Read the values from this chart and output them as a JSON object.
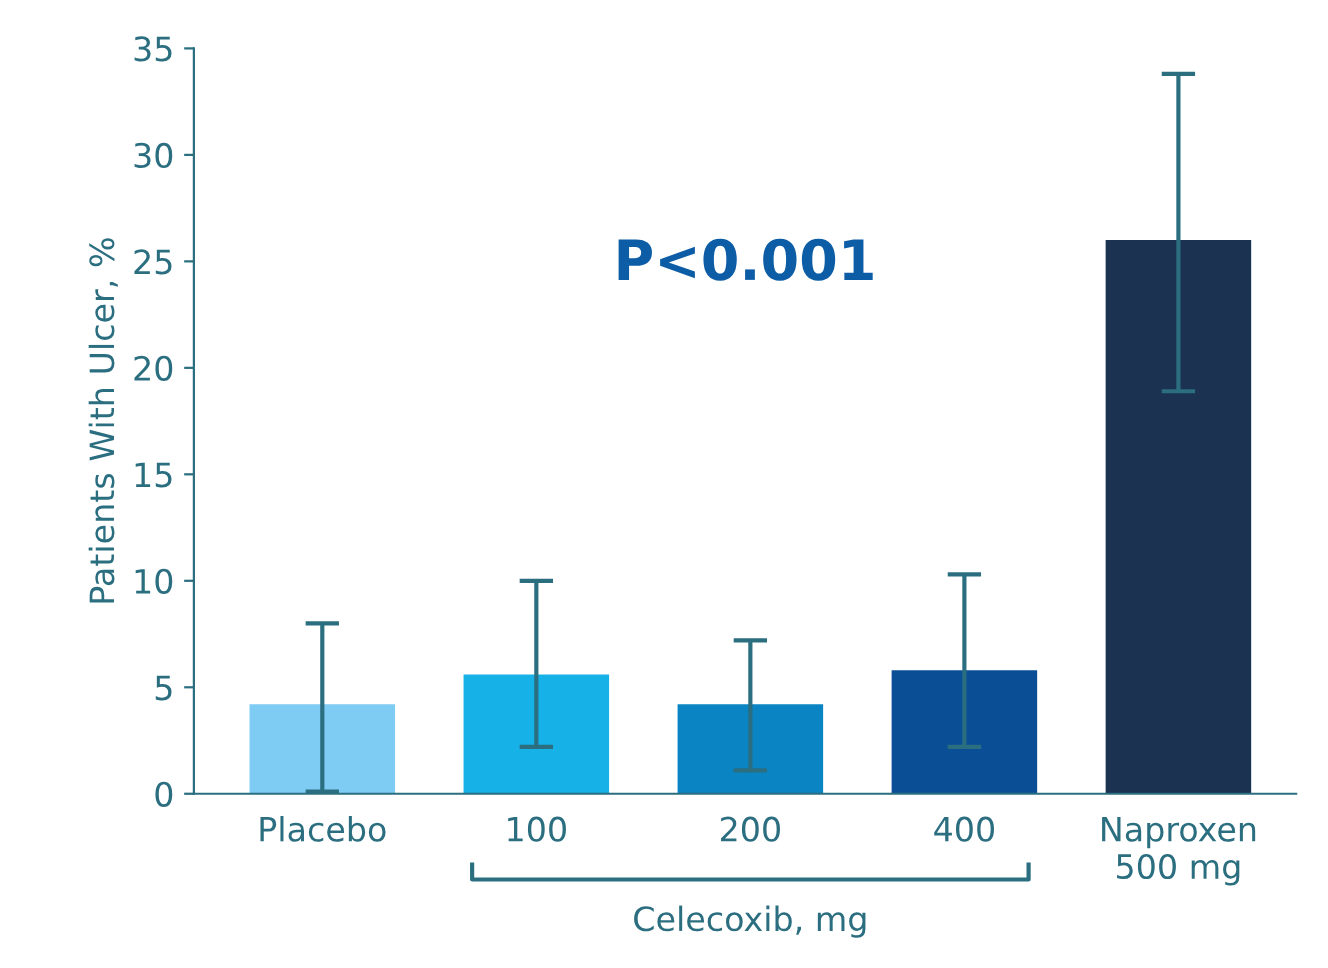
{
  "chart_data": {
    "type": "bar",
    "ylabel": "Patients With Ulcer, %",
    "categories": [
      "Placebo",
      "100",
      "200",
      "400",
      "Naproxen\n500 mg"
    ],
    "values": [
      4.2,
      5.6,
      4.2,
      5.8,
      26.0
    ],
    "colors": [
      "#7ecbf3",
      "#16b1e6",
      "#0a84c2",
      "#0a4f96",
      "#1b3251"
    ],
    "errors": [
      [
        0.1,
        8.0
      ],
      [
        2.2,
        10.0
      ],
      [
        1.1,
        7.2
      ],
      [
        2.2,
        10.3
      ],
      [
        18.9,
        33.8
      ]
    ],
    "ylim": [
      0,
      35
    ],
    "yticks": [
      0,
      5,
      10,
      15,
      20,
      25,
      30,
      35
    ],
    "grid": false,
    "annotations": [
      "P<0.001",
      "Celecoxib, mg"
    ]
  }
}
